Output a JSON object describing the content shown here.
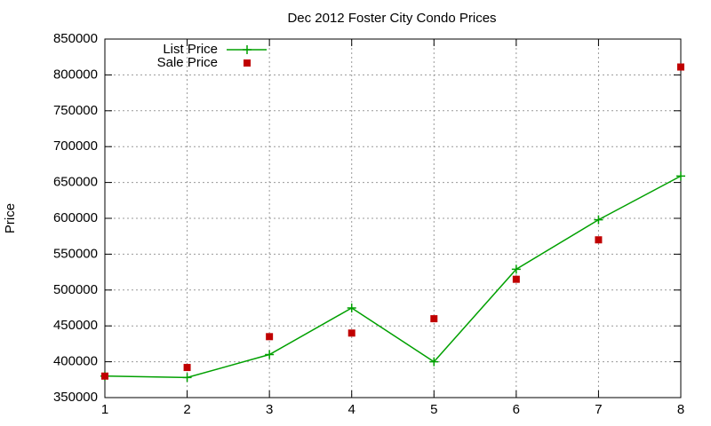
{
  "chart_data": {
    "type": "line",
    "title": "Dec 2012 Foster City Condo Prices",
    "y_label": "Price",
    "x": [
      1,
      2,
      3,
      4,
      5,
      6,
      7,
      8
    ],
    "series": [
      {
        "name": "List Price",
        "color": "#00a000",
        "style": "linespoints",
        "values": [
          380000,
          378000,
          410000,
          475000,
          400000,
          529000,
          598000,
          659000
        ]
      },
      {
        "name": "Sale Price",
        "color": "#c00000",
        "style": "points",
        "values": [
          380000,
          392000,
          435000,
          440000,
          460000,
          515000,
          570000,
          811000
        ]
      }
    ],
    "xlim": [
      1,
      8
    ],
    "xticks": [
      1,
      2,
      3,
      4,
      5,
      6,
      7,
      8
    ],
    "ylim": [
      350000,
      850000
    ],
    "yticks": [
      350000,
      400000,
      450000,
      500000,
      550000,
      600000,
      650000,
      700000,
      750000,
      800000,
      850000
    ],
    "grid": true,
    "legend": "top-left"
  }
}
